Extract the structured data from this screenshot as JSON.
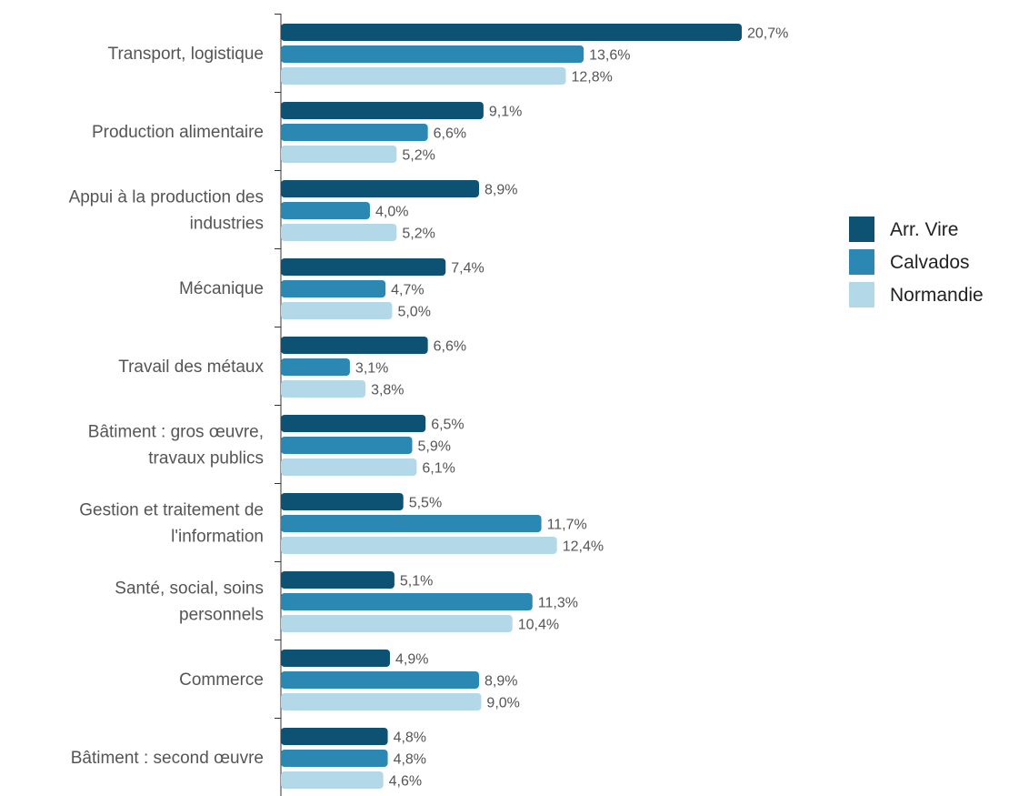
{
  "chart_data": {
    "type": "bar",
    "orientation": "horizontal",
    "categories": [
      [
        "Transport, logistique"
      ],
      [
        "Production alimentaire"
      ],
      [
        "Appui à la production des",
        "industries"
      ],
      [
        "Mécanique"
      ],
      [
        "Travail des métaux"
      ],
      [
        "Bâtiment : gros œuvre,",
        "travaux publics"
      ],
      [
        "Gestion et traitement de",
        "l'information"
      ],
      [
        "Santé, social, soins",
        "personnels"
      ],
      [
        "Commerce"
      ],
      [
        "Bâtiment : second œuvre"
      ]
    ],
    "series": [
      {
        "name": "Arr. Vire",
        "color": "#0d5273",
        "values": [
          20.7,
          9.1,
          8.9,
          7.4,
          6.6,
          6.5,
          5.5,
          5.1,
          4.9,
          4.8
        ],
        "labels": [
          "20,7%",
          "9,1%",
          "8,9%",
          "7,4%",
          "6,6%",
          "6,5%",
          "5,5%",
          "5,1%",
          "4,9%",
          "4,8%"
        ]
      },
      {
        "name": "Calvados",
        "color": "#2a88b3",
        "values": [
          13.6,
          6.6,
          4.0,
          4.7,
          3.1,
          5.9,
          11.7,
          11.3,
          8.9,
          4.8
        ],
        "labels": [
          "13,6%",
          "6,6%",
          "4,0%",
          "4,7%",
          "3,1%",
          "5,9%",
          "11,7%",
          "11,3%",
          "8,9%",
          "4,8%"
        ]
      },
      {
        "name": "Normandie",
        "color": "#b3d8e7",
        "values": [
          12.8,
          5.2,
          5.2,
          5.0,
          3.8,
          6.1,
          12.4,
          10.4,
          9.0,
          4.6
        ],
        "labels": [
          "12,8%",
          "5,2%",
          "5,2%",
          "5,0%",
          "3,8%",
          "6,1%",
          "12,4%",
          "10,4%",
          "9,0%",
          "4,6%"
        ]
      }
    ],
    "xlim": [
      0,
      21
    ],
    "title": "",
    "xlabel": "",
    "ylabel": "",
    "grid": false,
    "legend": "right"
  }
}
